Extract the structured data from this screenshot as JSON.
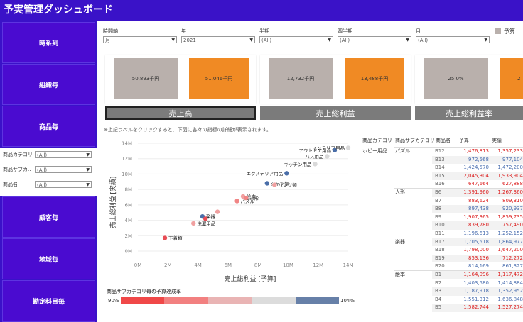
{
  "header": {
    "title": "予実管理ダッシュボード"
  },
  "sidebar": {
    "items": [
      {
        "label": "時系列"
      },
      {
        "label": "組織毎"
      },
      {
        "label": "商品毎"
      },
      {
        "label": "顧客毎"
      },
      {
        "label": "地域毎"
      },
      {
        "label": "勘定科目毎"
      }
    ],
    "filters": [
      {
        "label": "商品カテゴリ",
        "value": "(All)"
      },
      {
        "label": "商品サブカ..",
        "value": "(All)"
      },
      {
        "label": "商品名",
        "value": "(All)"
      }
    ]
  },
  "top_filters": [
    {
      "label": "時間軸",
      "value": "月"
    },
    {
      "label": "年",
      "value": "2021"
    },
    {
      "label": "半期",
      "value": "(All)"
    },
    {
      "label": "四半期",
      "value": "(All)"
    },
    {
      "label": "月",
      "value": "(All)"
    }
  ],
  "legend": {
    "label": "予算",
    "color": "#b9b0ac"
  },
  "kpis": [
    {
      "budget": "50,893千円",
      "actual": "51,046千円",
      "button": "売上高"
    },
    {
      "budget": "12,732千円",
      "actual": "13,488千円",
      "button": "売上総利益"
    },
    {
      "budget": "25.0%",
      "actual": "2",
      "button": "売上総利益率"
    }
  ],
  "note": "※上記ラベルをクリックすると、下図に各々の指標の詳細が表示されます。",
  "chart_data": {
    "type": "scatter",
    "xlabel": "売上総利益 [予算]",
    "ylabel": "売上総利益 [実績]",
    "x_ticks": [
      "0M",
      "2M",
      "4M",
      "6M",
      "8M",
      "10M",
      "12M",
      "14M"
    ],
    "y_ticks": [
      "0M",
      "2M",
      "4M",
      "6M",
      "8M",
      "10M",
      "12M",
      "14M"
    ],
    "xlim": [
      0,
      14
    ],
    "ylim": [
      0,
      14
    ],
    "points": [
      {
        "label": "下着類",
        "x": 1.8,
        "y": 1.7,
        "color": "#e84c55"
      },
      {
        "label": "洗濯用品",
        "x": 3.7,
        "y": 3.6,
        "color": "#f0a0a0"
      },
      {
        "label": "楽器",
        "x": 4.3,
        "y": 4.5,
        "color": "#4a6ea8"
      },
      {
        "label": "",
        "x": 4.5,
        "y": 4.2,
        "color": "#e84c55"
      },
      {
        "label": "",
        "x": 5.3,
        "y": 5.1,
        "color": "#f0a0a0"
      },
      {
        "label": "パズル",
        "x": 6.6,
        "y": 6.5,
        "color": "#f08585"
      },
      {
        "label": "絵本",
        "x": 7.0,
        "y": 7.1,
        "color": "#f0a0a0"
      },
      {
        "label": "人形",
        "x": 7.2,
        "y": 6.9,
        "color": "#f08585"
      },
      {
        "label": "シャツ類",
        "x": 8.6,
        "y": 8.8,
        "color": "#4a6ea8"
      },
      {
        "label": "パンツ類",
        "x": 9.1,
        "y": 8.6,
        "color": "#f0a0a0"
      },
      {
        "label": "エクステリア用品",
        "x": 9.9,
        "y": 10.1,
        "color": "#4a6ea8"
      },
      {
        "label": "キッチン用品",
        "x": 11.8,
        "y": 11.3,
        "color": "#d9d9d9"
      },
      {
        "label": "バス用品",
        "x": 12.6,
        "y": 12.3,
        "color": "#d9d9d9"
      },
      {
        "label": "アウトドア用品",
        "x": 13.1,
        "y": 13.1,
        "color": "#4a6ea8"
      },
      {
        "label": "インテリア用品",
        "x": 14.0,
        "y": 13.4,
        "color": "#d9d9d9"
      }
    ]
  },
  "rate_bar": {
    "title": "商品サブカテゴリ毎の予算達成率",
    "min_label": "90%",
    "max_label": "104%",
    "colors": [
      "#f04848",
      "#f28080",
      "#e9b4b4",
      "#dcdcdc",
      "#6780a8"
    ]
  },
  "table": {
    "headers": [
      "商品カテゴリ",
      "商品サブカテゴリ",
      "商品名",
      "予算",
      "実績"
    ],
    "category": "ホビー用品",
    "groups": [
      {
        "name": "パズル",
        "rows": [
          {
            "code": "B12",
            "budget": "1,476,813",
            "actual": "1,357,233",
            "blue": false
          },
          {
            "code": "B13",
            "budget": "972,568",
            "actual": "977,104",
            "blue": true
          },
          {
            "code": "B14",
            "budget": "1,424,570",
            "actual": "1,472,200",
            "blue": true
          },
          {
            "code": "B15",
            "budget": "2,045,304",
            "actual": "1,933,904",
            "blue": false
          },
          {
            "code": "B16",
            "budget": "647,664",
            "actual": "627,888",
            "blue": false
          }
        ]
      },
      {
        "name": "人形",
        "rows": [
          {
            "code": "B6",
            "budget": "1,391,960",
            "actual": "1,267,360",
            "blue": false
          },
          {
            "code": "B7",
            "budget": "883,624",
            "actual": "809,310",
            "blue": false
          },
          {
            "code": "B8",
            "budget": "897,438",
            "actual": "920,937",
            "blue": true
          },
          {
            "code": "B9",
            "budget": "1,907,365",
            "actual": "1,859,735",
            "blue": false
          },
          {
            "code": "B10",
            "budget": "839,780",
            "actual": "757,490",
            "blue": false
          },
          {
            "code": "B11",
            "budget": "1,196,613",
            "actual": "1,252,152",
            "blue": true
          }
        ]
      },
      {
        "name": "楽器",
        "rows": [
          {
            "code": "B17",
            "budget": "1,705,518",
            "actual": "1,864,977",
            "blue": true
          },
          {
            "code": "B18",
            "budget": "1,798,000",
            "actual": "1,647,200",
            "blue": false
          },
          {
            "code": "B19",
            "budget": "853,136",
            "actual": "712,272",
            "blue": false
          },
          {
            "code": "B20",
            "budget": "814,169",
            "actual": "861,327",
            "blue": true
          }
        ]
      },
      {
        "name": "絵本",
        "rows": [
          {
            "code": "B1",
            "budget": "1,164,096",
            "actual": "1,117,472",
            "blue": false
          },
          {
            "code": "B2",
            "budget": "1,403,580",
            "actual": "1,414,884",
            "blue": true
          },
          {
            "code": "B3",
            "budget": "1,187,918",
            "actual": "1,352,952",
            "blue": true
          },
          {
            "code": "B4",
            "budget": "1,551,312",
            "actual": "1,636,848",
            "blue": true
          },
          {
            "code": "B5",
            "budget": "1,582,744",
            "actual": "1,527,274",
            "blue": false
          }
        ]
      }
    ]
  }
}
